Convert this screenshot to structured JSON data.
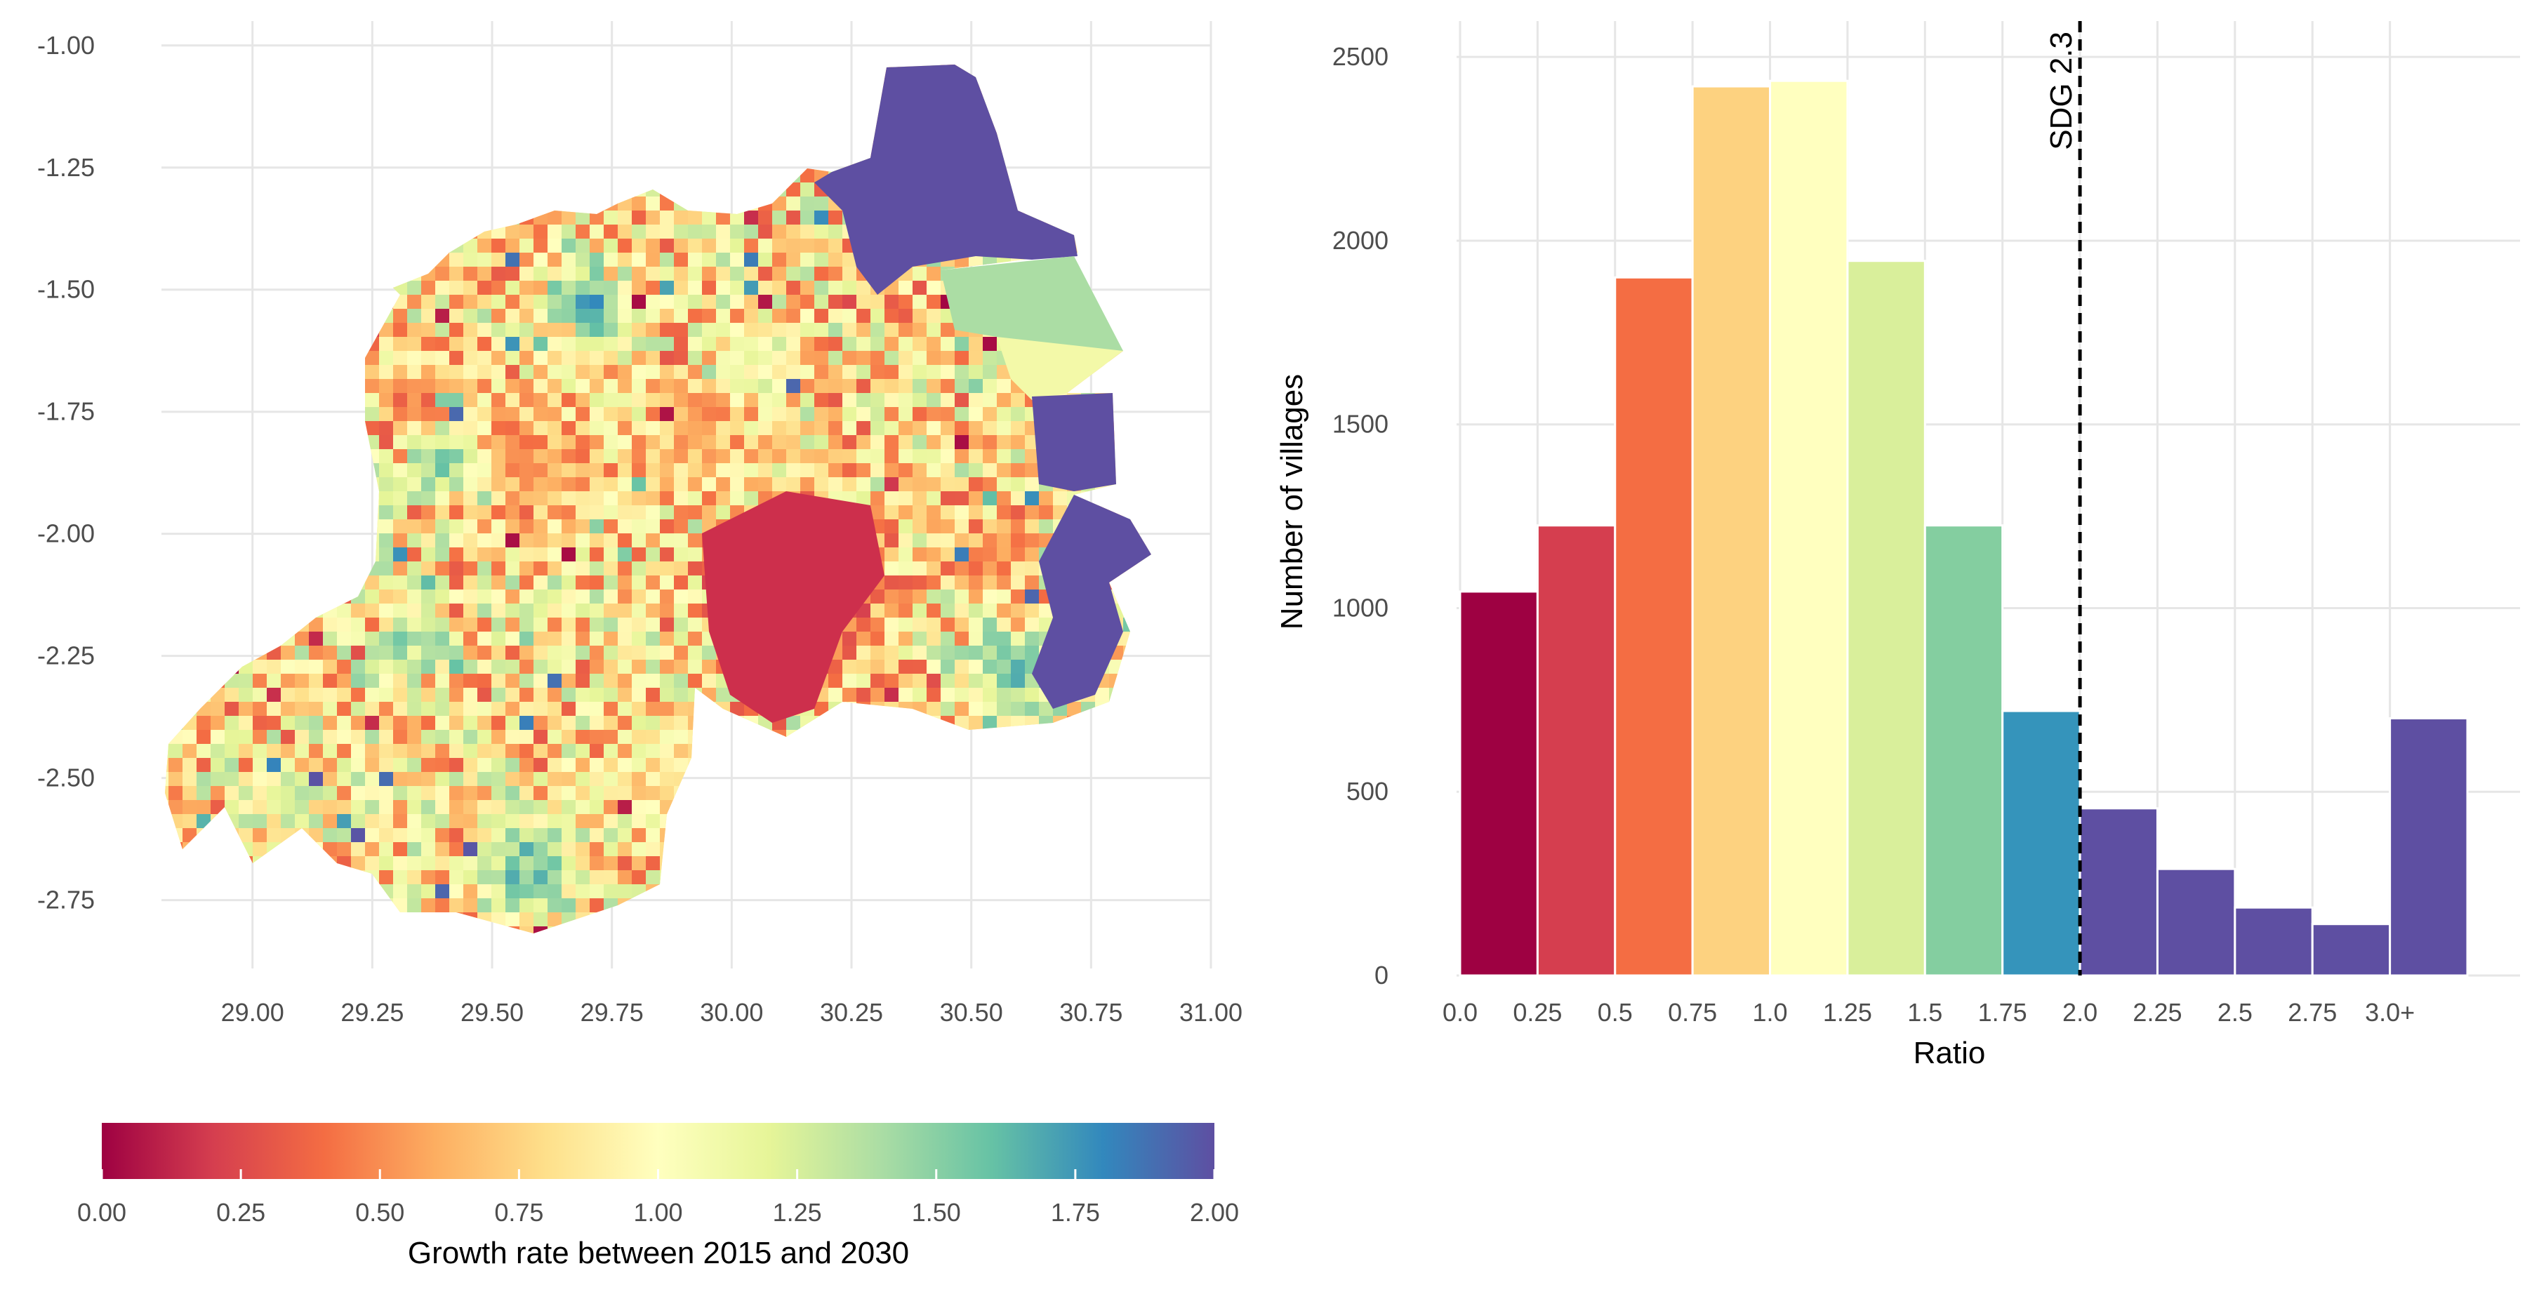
{
  "chart_data": [
    {
      "type": "heatmap",
      "title": "",
      "xlabel": "",
      "ylabel": "",
      "x_ticks": [
        "29.00",
        "29.25",
        "29.50",
        "29.75",
        "30.00",
        "30.25",
        "30.50",
        "30.75",
        "31.00"
      ],
      "y_ticks": [
        "-1.00",
        "-1.25",
        "-1.50",
        "-1.75",
        "-2.00",
        "-2.25",
        "-2.50",
        "-2.75"
      ],
      "xlim": [
        28.81,
        31.0
      ],
      "ylim": [
        -2.89,
        -0.95
      ],
      "colorbar": {
        "title": "Growth rate between 2015 and 2030",
        "ticks": [
          "0.00",
          "0.25",
          "0.50",
          "0.75",
          "1.00",
          "1.25",
          "1.50",
          "1.75",
          "2.00"
        ],
        "range": [
          0,
          2
        ],
        "colors": [
          "#9e0142",
          "#d53e4f",
          "#f46d43",
          "#fdae61",
          "#fee08b",
          "#ffffbf",
          "#e6f598",
          "#abdda4",
          "#66c2a5",
          "#3288bd",
          "#5e4fa2"
        ]
      }
    },
    {
      "type": "bar",
      "title": "",
      "xlabel": "Ratio",
      "ylabel": "Number of villages",
      "x_ticks": [
        "0.0",
        "0.25",
        "0.5",
        "0.75",
        "1.0",
        "1.25",
        "1.5",
        "1.75",
        "2.0",
        "2.25",
        "2.5",
        "2.75",
        "3.0+"
      ],
      "y_ticks": [
        "0",
        "500",
        "1000",
        "1500",
        "2000",
        "2500"
      ],
      "ylim": [
        0,
        2550
      ],
      "bins": [
        {
          "start": 0.0,
          "end": 0.25,
          "value": 1045,
          "color": "#9e0142"
        },
        {
          "start": 0.25,
          "end": 0.5,
          "value": 1225,
          "color": "#d53e4f"
        },
        {
          "start": 0.5,
          "end": 0.75,
          "value": 1900,
          "color": "#f46d43"
        },
        {
          "start": 0.75,
          "end": 1.0,
          "value": 2420,
          "color": "#fdd280"
        },
        {
          "start": 1.0,
          "end": 1.25,
          "value": 2435,
          "color": "#ffffbf"
        },
        {
          "start": 1.25,
          "end": 1.5,
          "value": 1945,
          "color": "#d9ef9b"
        },
        {
          "start": 1.5,
          "end": 1.75,
          "value": 1225,
          "color": "#84cea0"
        },
        {
          "start": 1.75,
          "end": 2.0,
          "value": 720,
          "color": "#3594bb"
        },
        {
          "start": 2.0,
          "end": 2.25,
          "value": 455,
          "color": "#5e4fa2"
        },
        {
          "start": 2.25,
          "end": 2.5,
          "value": 290,
          "color": "#5e4fa2"
        },
        {
          "start": 2.5,
          "end": 2.75,
          "value": 185,
          "color": "#5e4fa2"
        },
        {
          "start": 2.75,
          "end": 3.0,
          "value": 140,
          "color": "#5e4fa2"
        },
        {
          "start": 3.0,
          "end": 3.25,
          "value": 700,
          "color": "#5e4fa2"
        }
      ],
      "reference_line": {
        "x": 2.0,
        "label": "SDG 2.3",
        "style": "dashed"
      }
    }
  ]
}
